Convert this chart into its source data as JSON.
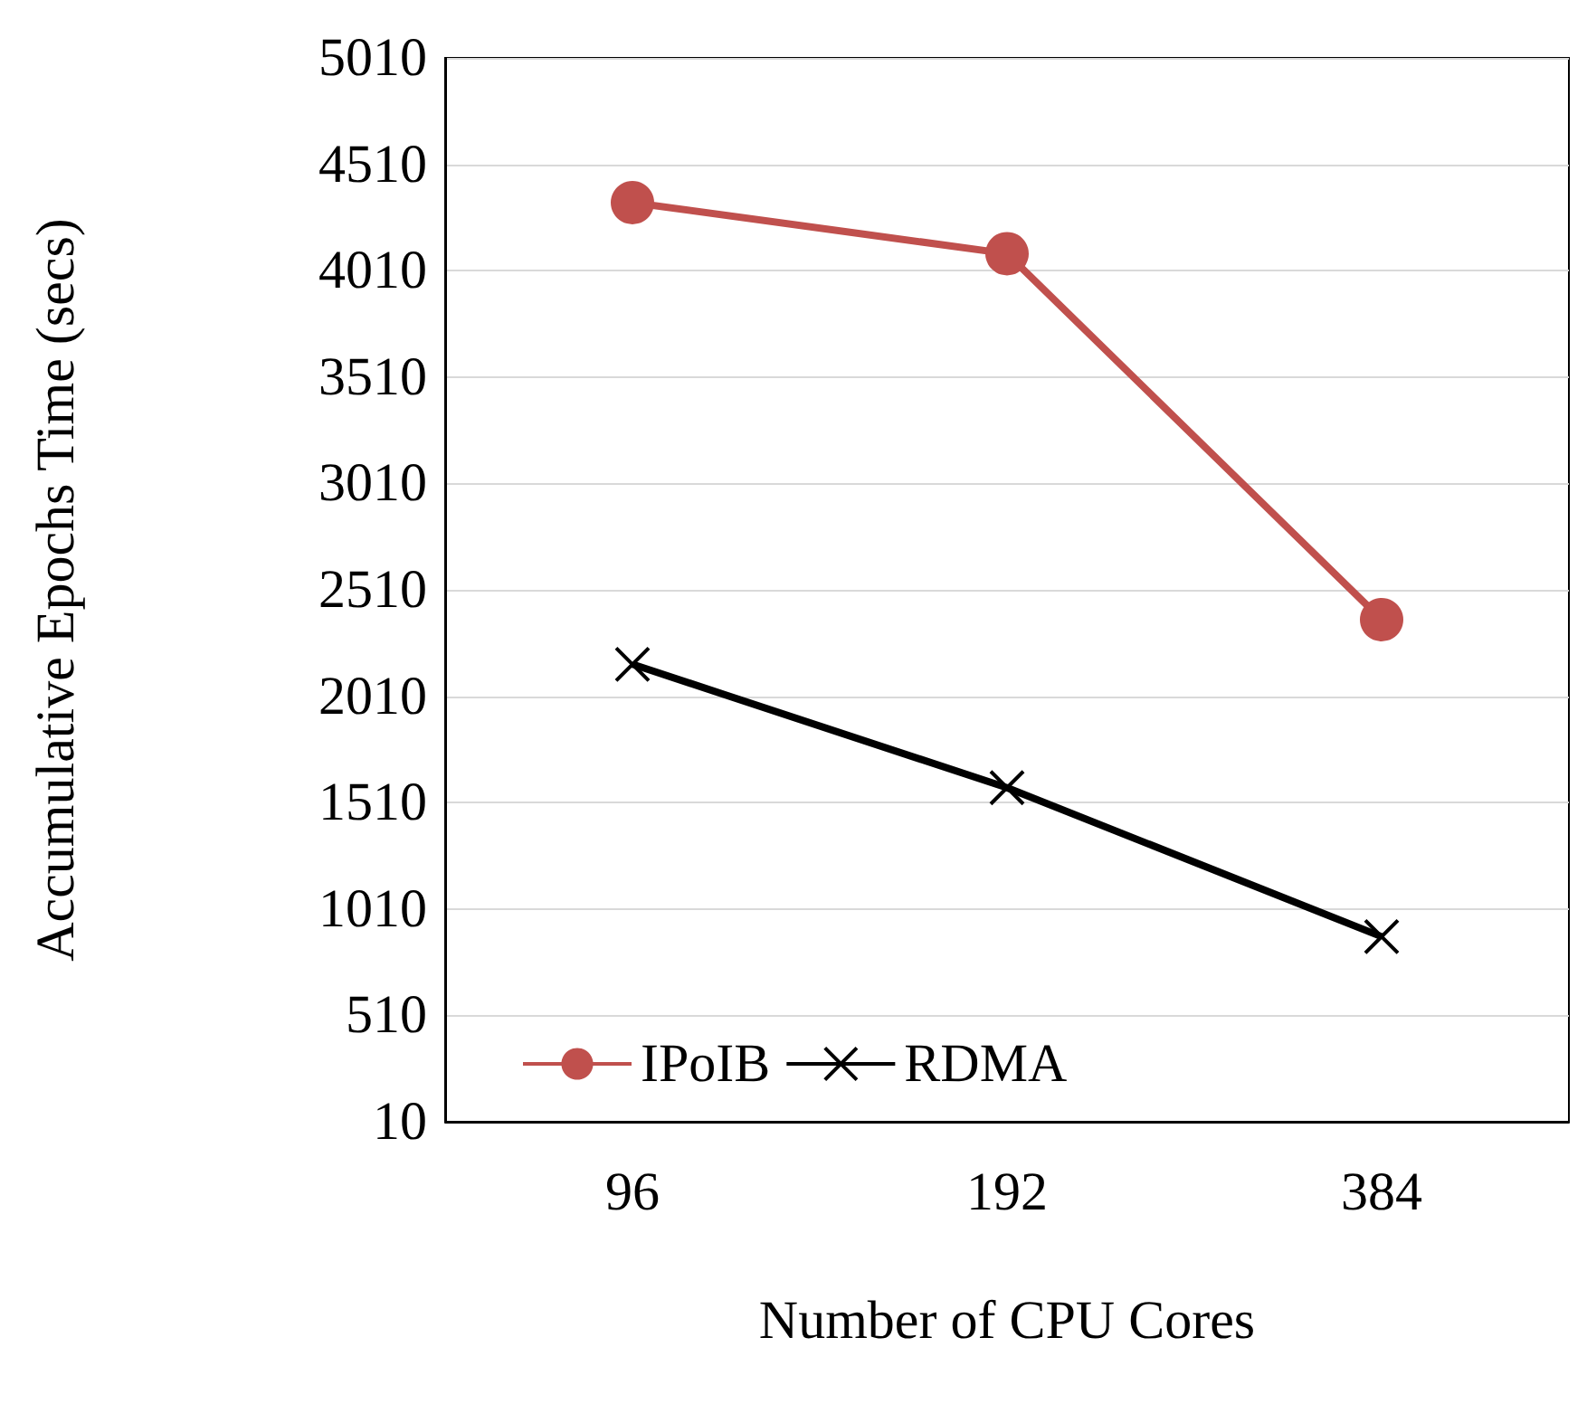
{
  "chart_data": {
    "type": "line",
    "xlabel": "Number of CPU Cores",
    "ylabel": "Accumulative Epochs Time (secs)",
    "categories": [
      "96",
      "192",
      "384"
    ],
    "series": [
      {
        "name": "IPoIB",
        "color": "#c0504d",
        "values": [
          4330,
          4090,
          2370
        ],
        "marker": "circle"
      },
      {
        "name": "RDMA",
        "color": "#000000",
        "values": [
          2160,
          1580,
          880
        ],
        "marker": "cross"
      }
    ],
    "ylim": [
      10,
      5010
    ],
    "yticks": [
      10,
      510,
      1010,
      1510,
      2010,
      2510,
      3010,
      3510,
      4010,
      4510,
      5010
    ],
    "grid": "y",
    "legend": "bottom left",
    "line_style": "solid"
  }
}
